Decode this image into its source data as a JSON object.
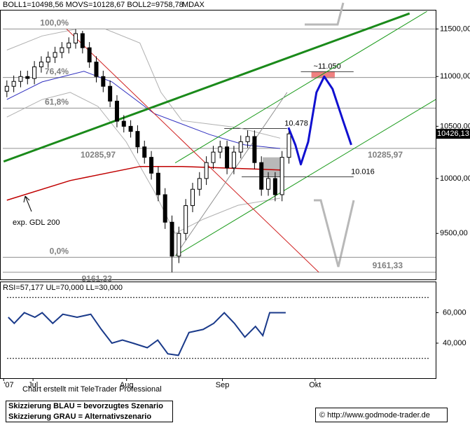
{
  "chart_data": [
    {
      "type": "candlestick",
      "header": "BOLL1=10498,56 MOVS=10128,67 BOLL2=9758,78",
      "title": "MDAX",
      "x": [
        1.5,
        3,
        4.5,
        6,
        7.5,
        9,
        10.5,
        12,
        13.5,
        15,
        16.5,
        18,
        19.5,
        21,
        22.5,
        24,
        25.5,
        27,
        28.5,
        30,
        31.5,
        33,
        34.5,
        36,
        37.5,
        39,
        40.5,
        42,
        43.5,
        45,
        46.5,
        48,
        49.5,
        51,
        52.5,
        54,
        55.5,
        57,
        58.5,
        60,
        61.5,
        63
      ],
      "open": [
        10850,
        10900,
        10950,
        11000,
        10980,
        11100,
        11150,
        11200,
        11250,
        11300,
        11350,
        11450,
        11300,
        11150,
        11000,
        10900,
        10750,
        10550,
        10500,
        10450,
        10300,
        10200,
        10050,
        9850,
        9600,
        9300,
        9500,
        9750,
        9900,
        10000,
        10150,
        10250,
        10300,
        10100,
        10250,
        10350,
        10400,
        10150,
        9900,
        10000,
        9850,
        10200
      ],
      "high": [
        10960,
        11010,
        11060,
        11060,
        11160,
        11210,
        11260,
        11310,
        11360,
        11410,
        11500,
        11480,
        11360,
        11210,
        11060,
        10960,
        10810,
        10610,
        10560,
        10510,
        10360,
        10260,
        10110,
        9910,
        9660,
        9560,
        9810,
        9960,
        10060,
        10210,
        10310,
        10360,
        10360,
        10310,
        10410,
        10460,
        10460,
        10210,
        10060,
        10060,
        10260,
        10486
      ],
      "low": [
        10790,
        10840,
        10890,
        10920,
        10920,
        11040,
        11090,
        11140,
        11190,
        11240,
        11290,
        11240,
        11090,
        10940,
        10840,
        10690,
        10490,
        10440,
        10390,
        10240,
        10140,
        9990,
        9790,
        9540,
        9161,
        9240,
        9440,
        9690,
        9840,
        9940,
        10090,
        10190,
        10040,
        10040,
        10190,
        10290,
        10090,
        9840,
        9840,
        9790,
        9790,
        10140
      ],
      "close": [
        10900,
        10950,
        11000,
        10980,
        11100,
        11150,
        11200,
        11250,
        11300,
        11350,
        11450,
        11300,
        11150,
        11000,
        10900,
        10750,
        10550,
        10500,
        10450,
        10300,
        10200,
        10050,
        9850,
        9600,
        9300,
        9500,
        9750,
        9900,
        10000,
        10150,
        10250,
        10300,
        10100,
        10250,
        10350,
        10400,
        10150,
        9900,
        10000,
        9850,
        10200,
        10426
      ],
      "xlim": [
        0,
        95
      ],
      "ylim": [
        9100,
        11700
      ],
      "log_scale": true,
      "yticks": [
        {
          "value": 11500,
          "label": "11500,00"
        },
        {
          "value": 11000,
          "label": "11000,00"
        },
        {
          "value": 10500,
          "label": "10500,00"
        },
        {
          "value": 10000,
          "label": "10000,00"
        },
        {
          "value": 9500,
          "label": "9500,00"
        }
      ],
      "overlays": [
        {
          "x": [
            1.5,
            9.2,
            16.8,
            22.9,
            30.5,
            35.1,
            39.7,
            45.8,
            51.9,
            61.1
          ],
          "values": [
            11275,
            11425,
            11500,
            11500,
            11350,
            10838,
            10556,
            10521,
            10487,
            10384
          ],
          "color": "#b0b0b0",
          "width": 1
        },
        {
          "x": [
            1.5,
            9.2,
            15.3,
            21.4,
            27.5,
            33.6,
            38.2,
            44.3,
            51.9,
            61.1
          ],
          "values": [
            10591,
            10766,
            10838,
            10696,
            10349,
            9883,
            9500,
            9626,
            9753,
            9818
          ],
          "color": "#b0b0b0",
          "width": 1
        },
        {
          "x": [
            1.5,
            9.2,
            18.3,
            24.4,
            33.6,
            45.8,
            53.4,
            61.1
          ],
          "values": [
            10766,
            10945,
            11054,
            10945,
            10626,
            10418,
            10319,
            10285
          ],
          "color": "#3030c0",
          "width": 1
        },
        {
          "x": [
            1.5,
            15.3,
            30.5,
            39.7,
            61.1
          ],
          "values": [
            9799,
            9981,
            10113,
            10113,
            10080
          ],
          "color": "#c00000",
          "width": 1.5
        },
        {
          "x": [
            0.8,
            89.3
          ],
          "values": [
            10160,
            11668
          ],
          "color": "#1a8a1a",
          "width": 3
        },
        {
          "x": [
            38.2,
            93.1
          ],
          "values": [
            10147,
            11691
          ],
          "color": "#1a9a1a",
          "width": 1
        },
        {
          "x": [
            38.2,
            95
          ],
          "values": [
            9302,
            10766
          ],
          "color": "#1a9a1a",
          "width": 1
        },
        {
          "x": [
            14.5,
            69.5
          ],
          "values": [
            11500,
            9162
          ],
          "color": "#d02020",
          "width": 1
        },
        {
          "x": [
            38.2,
            62.6
          ],
          "values": [
            9302,
            10838
          ],
          "color": "#909090",
          "width": 1
        }
      ],
      "levels": [
        {
          "value": 11500,
          "label": "100,0%"
        },
        {
          "value": 10990,
          "label": "76,4%"
        },
        {
          "value": 10680,
          "label": "61,8%"
        },
        {
          "value": 10285.97,
          "label": "10285,97",
          "right_label": "10285,97"
        },
        {
          "value": 9290,
          "label": "0,0%"
        },
        {
          "value": 9161.33,
          "label": "9161,33",
          "right_label": "9161,33"
        }
      ],
      "segments": [
        {
          "x": [
            48.9,
            62.6
          ],
          "value": 10478,
          "label": "10.478"
        },
        {
          "x": [
            52.7,
            77.1
          ],
          "value": 10016,
          "label": "10.016"
        },
        {
          "x": [
            65.6,
            77.1
          ],
          "value": 11050,
          "label": "~11.050"
        }
      ],
      "zones": [
        {
          "x": [
            67.9,
            73.0
          ],
          "values": [
            10982,
            11054
          ],
          "color": "#f08080"
        },
        {
          "x": [
            57.3,
            61.1
          ],
          "values": [
            10014,
            10200
          ],
          "color": "#b8b8b8"
        }
      ],
      "scenario": {
        "x": [
          62.9,
          64.4,
          65.6,
          67.2,
          69.0,
          70.7,
          72.5,
          74.8,
          76.6
        ],
        "values": [
          10487,
          10319,
          10133,
          10349,
          10838,
          11000,
          10874,
          10556,
          10319
        ],
        "color": "#1010d0"
      },
      "last_price": {
        "value": 10426.13,
        "label": "10426,13"
      },
      "annotation": "exp. GDL 200"
    },
    {
      "type": "line",
      "header": "RSI=57,177 UL=70,000 LL=30,000",
      "x": [
        1.8,
        3.1,
        5.3,
        7.6,
        9.2,
        11.5,
        13.7,
        16.8,
        19.8,
        22.1,
        24.4,
        26.7,
        29.0,
        32.1,
        34.4,
        36.6,
        38.9,
        41.2,
        44.3,
        46.6,
        48.9,
        51.1,
        53.4,
        55.7,
        57.3,
        58.8,
        61.1,
        62.3
      ],
      "values": [
        57,
        53,
        60,
        57,
        60,
        53,
        59,
        57,
        59,
        49,
        40,
        42,
        40,
        37,
        42,
        33,
        32,
        47,
        49,
        53,
        60,
        53,
        44,
        51,
        45,
        60,
        60,
        60
      ],
      "color": "#1a3a8a",
      "xlim": [
        0,
        95
      ],
      "ylim": [
        17,
        80
      ],
      "yticks": [
        {
          "value": 60,
          "label": "60,000"
        },
        {
          "value": 40,
          "label": "40,000"
        }
      ],
      "upper_line": 70,
      "lower_line": 30,
      "xticks": [
        {
          "value": 0.8,
          "label": "'07"
        },
        {
          "value": 7.2,
          "label": "Jul"
        },
        {
          "value": 27.6,
          "label": "Aug"
        },
        {
          "value": 48.5,
          "label": "Sep"
        },
        {
          "value": 68.7,
          "label": "Okt"
        }
      ]
    }
  ],
  "footer": {
    "credit": "Chart erstellt mit TeleTrader Professional",
    "legend_box": [
      "Skizzierung BLAU = bevorzugtes Szenario",
      "Skizzierung GRAU = Alternativszenario"
    ],
    "copyright": "© http://www.godmode-trader.de"
  }
}
